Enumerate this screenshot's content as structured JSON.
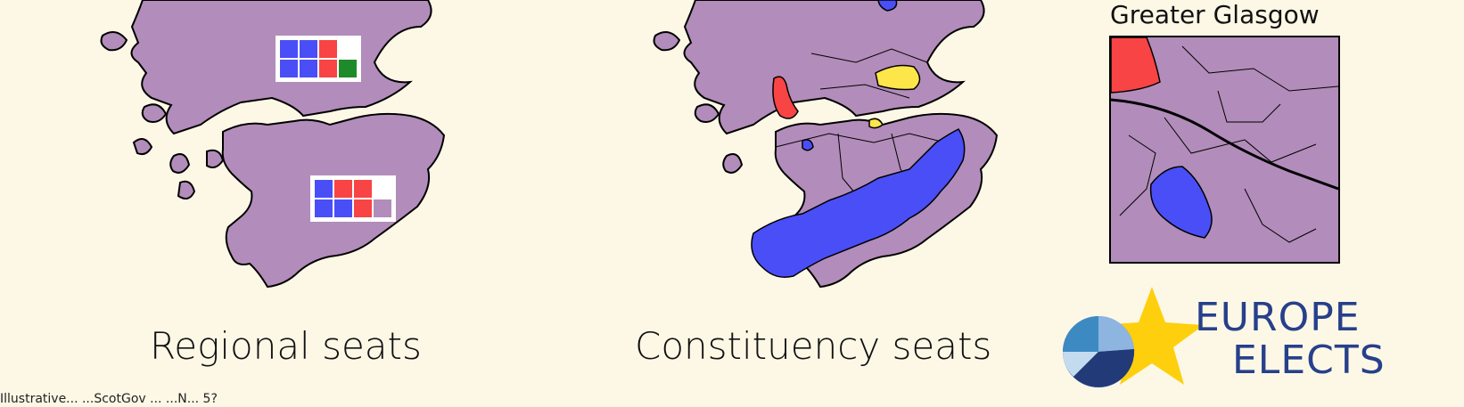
{
  "colors": {
    "background": "#fdf8e6",
    "land": "#b28cba",
    "blue": "#4a4ef7",
    "red": "#f84444",
    "yellow": "#fde64a",
    "green": "#1f8a2a",
    "outline": "#000000"
  },
  "maps": {
    "regional": {
      "caption": "Regional seats",
      "north_region_seats": [
        "blue",
        "blue",
        "red",
        "blue",
        "blue",
        "red",
        "green"
      ],
      "south_region_seats": [
        "blue",
        "red",
        "red",
        "blue",
        "blue",
        "red",
        "land"
      ]
    },
    "constituency": {
      "caption": "Constituency seats"
    },
    "inset": {
      "title": "Greater Glasgow"
    }
  },
  "logo": {
    "line1": "EUROPE",
    "line2": "ELECTS",
    "icon": "star-and-pie-logo"
  },
  "footnote": "Illustrative... ...ScotGov ... ...N... 5?"
}
